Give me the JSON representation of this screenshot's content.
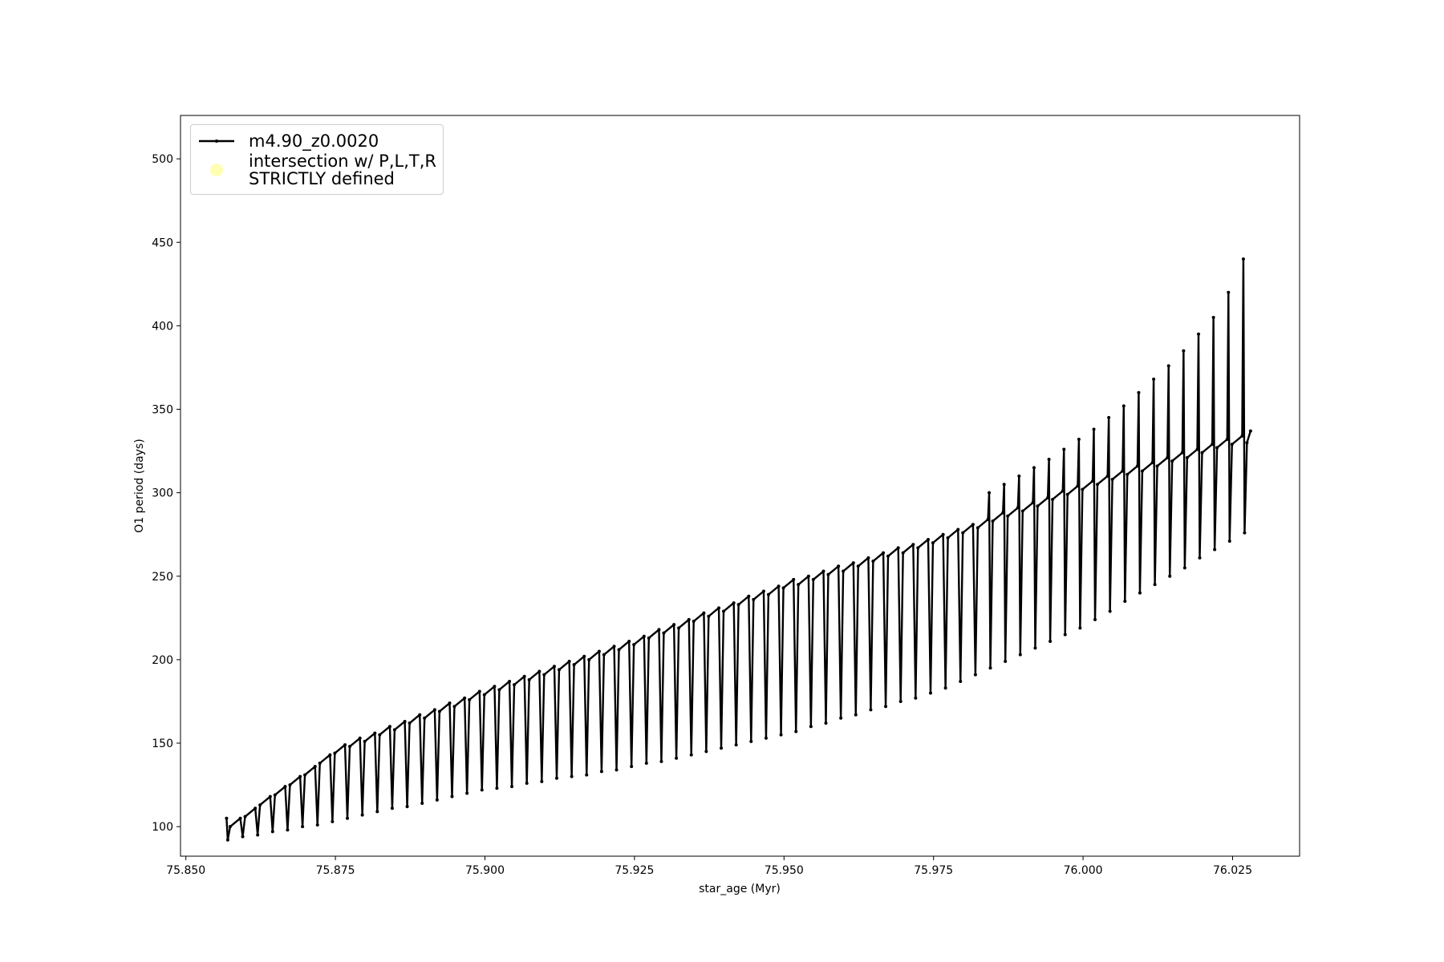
{
  "chart_data": {
    "type": "line",
    "xlabel": "star_age (Myr)",
    "ylabel": "O1 period (days)",
    "xlim": [
      75.8491,
      76.0362
    ],
    "ylim": [
      82.3,
      526
    ],
    "xticks": [
      {
        "value": 75.85,
        "label": "75.850"
      },
      {
        "value": 75.875,
        "label": "75.875"
      },
      {
        "value": 75.9,
        "label": "75.900"
      },
      {
        "value": 75.925,
        "label": "75.925"
      },
      {
        "value": 75.95,
        "label": "75.950"
      },
      {
        "value": 75.975,
        "label": "75.975"
      },
      {
        "value": 76.0,
        "label": "76.000"
      },
      {
        "value": 76.025,
        "label": "76.025"
      }
    ],
    "yticks": [
      100,
      150,
      200,
      250,
      300,
      350,
      400,
      450,
      500
    ],
    "grid": false,
    "legend": "upper left",
    "series": [
      {
        "name": "m4.90_z0.0020",
        "color": "#000000",
        "marker": "dot",
        "x": [
          75.8568,
          75.857,
          75.8574,
          75.8591,
          75.8595,
          75.8599,
          75.8616,
          75.862,
          75.8624,
          75.8641,
          75.8645,
          75.8649,
          75.8666,
          75.867,
          75.8674,
          75.8691,
          75.8695,
          75.8699,
          75.8716,
          75.872,
          75.8724,
          75.8741,
          75.8745,
          75.8749,
          75.8766,
          75.877,
          75.8774,
          75.8791,
          75.8795,
          75.8799,
          75.8816,
          75.882,
          75.8824,
          75.8841,
          75.8845,
          75.8849,
          75.8866,
          75.887,
          75.8874,
          75.8891,
          75.8895,
          75.8899,
          75.8916,
          75.892,
          75.8924,
          75.8941,
          75.8945,
          75.8949,
          75.8966,
          75.897,
          75.8974,
          75.8991,
          75.8995,
          75.8999,
          75.9016,
          75.902,
          75.9024,
          75.9041,
          75.9045,
          75.9049,
          75.9066,
          75.907,
          75.9074,
          75.9091,
          75.9095,
          75.9099,
          75.9116,
          75.912,
          75.9124,
          75.9141,
          75.9145,
          75.9149,
          75.9166,
          75.917,
          75.9174,
          75.9191,
          75.9195,
          75.9199,
          75.9216,
          75.922,
          75.9224,
          75.9241,
          75.9245,
          75.9249,
          75.9266,
          75.927,
          75.9274,
          75.9291,
          75.9295,
          75.9299,
          75.9316,
          75.932,
          75.9324,
          75.9341,
          75.9345,
          75.9349,
          75.9366,
          75.937,
          75.9374,
          75.9391,
          75.9395,
          75.9399,
          75.9416,
          75.942,
          75.9424,
          75.9441,
          75.9445,
          75.9449,
          75.9466,
          75.947,
          75.9474,
          75.9491,
          75.9495,
          75.9499,
          75.9516,
          75.952,
          75.9524,
          75.9541,
          75.9545,
          75.9549,
          75.9566,
          75.957,
          75.9574,
          75.9591,
          75.9595,
          75.9599,
          75.9616,
          75.962,
          75.9624,
          75.9641,
          75.9645,
          75.9649,
          75.9666,
          75.967,
          75.9674,
          75.9691,
          75.9695,
          75.9699,
          75.9716,
          75.972,
          75.9724,
          75.9741,
          75.9745,
          75.9749,
          75.9766,
          75.977,
          75.9774,
          75.9791,
          75.9795,
          75.9799,
          75.9816,
          75.982,
          75.9824,
          75.9841,
          75.9843,
          75.9845,
          75.9849,
          75.9866,
          75.9868,
          75.987,
          75.9874,
          75.9891,
          75.9893,
          75.9895,
          75.9899,
          75.9916,
          75.9918,
          75.992,
          75.9924,
          75.9941,
          75.9943,
          75.9945,
          75.9949,
          75.9966,
          75.9968,
          75.997,
          75.9974,
          75.9991,
          75.9993,
          75.9995,
          75.9999,
          76.0016,
          76.0018,
          76.002,
          76.0024,
          76.0041,
          76.0043,
          76.0045,
          76.0049,
          76.0066,
          76.0068,
          76.007,
          76.0074,
          76.0091,
          76.0093,
          76.0095,
          76.0099,
          76.0116,
          76.0118,
          76.012,
          76.0124,
          76.0141,
          76.0143,
          76.0145,
          76.0149,
          76.0166,
          76.0168,
          76.017,
          76.0174,
          76.0191,
          76.0193,
          76.0195,
          76.0199,
          76.0216,
          76.0218,
          76.022,
          76.0224,
          76.0241,
          76.0243,
          76.0245,
          76.0249,
          76.0266,
          76.0268,
          76.027,
          76.0274,
          76.028
        ],
        "values": [
          105,
          92,
          100,
          105,
          94,
          106,
          111,
          95,
          113,
          118,
          97,
          119,
          124,
          98,
          125,
          130,
          100,
          131,
          136,
          101,
          138,
          143,
          103,
          144,
          149,
          105,
          148,
          153,
          107,
          151,
          156,
          109,
          155,
          160,
          111,
          158,
          163,
          112,
          162,
          167,
          114,
          165,
          170,
          116,
          169,
          174,
          118,
          172,
          177,
          120,
          176,
          181,
          122,
          179,
          184,
          123,
          182,
          187,
          124,
          185,
          190,
          126,
          188,
          193,
          127,
          191,
          196,
          129,
          194,
          199,
          130,
          197,
          202,
          131,
          200,
          205,
          133,
          203,
          208,
          134,
          206,
          211,
          136,
          209,
          214,
          138,
          213,
          218,
          139,
          216,
          221,
          141,
          219,
          224,
          143,
          223,
          228,
          145,
          226,
          231,
          147,
          229,
          234,
          149,
          233,
          238,
          151,
          236,
          241,
          153,
          239,
          244,
          155,
          243,
          248,
          157,
          245,
          250,
          160,
          248,
          253,
          162,
          251,
          256,
          165,
          253,
          258,
          167,
          256,
          261,
          170,
          259,
          264,
          172,
          262,
          267,
          175,
          264,
          269,
          177,
          267,
          272,
          180,
          270,
          275,
          183,
          273,
          278,
          187,
          276,
          281,
          191,
          279,
          284,
          300,
          195,
          283,
          288,
          305,
          199,
          286,
          291,
          310,
          203,
          289,
          294,
          315,
          207,
          292,
          297,
          320,
          211,
          296,
          301,
          326,
          215,
          299,
          304,
          332,
          219,
          302,
          307,
          338,
          224,
          305,
          310,
          345,
          229,
          308,
          313,
          352,
          235,
          311,
          316,
          360,
          240,
          313,
          318,
          368,
          245,
          316,
          321,
          376,
          250,
          319,
          324,
          385,
          255,
          321,
          326,
          395,
          261,
          324,
          329,
          405,
          266,
          327,
          332,
          420,
          271,
          329,
          334,
          440,
          276,
          330,
          337
        ]
      },
      {
        "name": "intersection w/ P,L,T,R\nSTRICTLY defined",
        "color": "#ffffb3",
        "marker": "circle",
        "x": [],
        "values": []
      }
    ]
  }
}
